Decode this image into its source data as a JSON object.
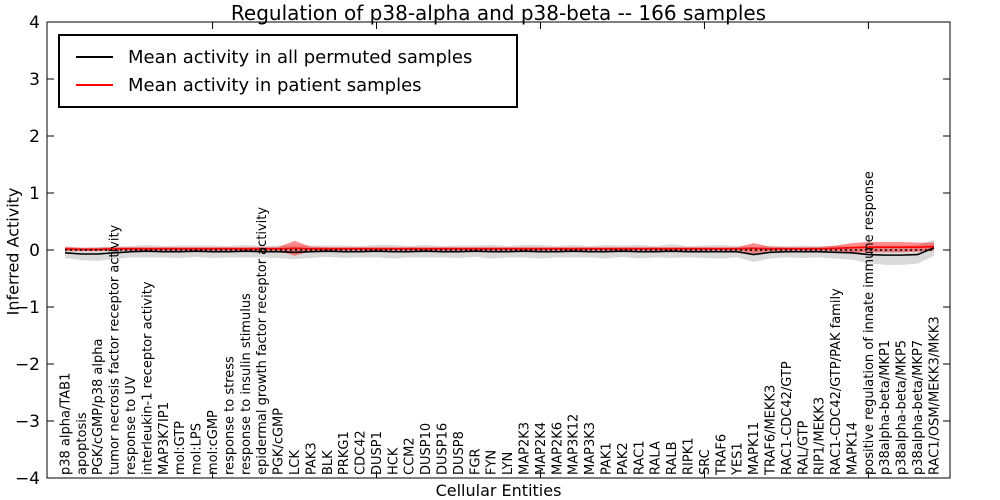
{
  "title": "Regulation of p38-alpha and p38-beta -- 166 samples",
  "legend": {
    "items": [
      {
        "label": "Mean activity in all permuted samples",
        "color": "#000000"
      },
      {
        "label": "Mean activity in patient samples",
        "color": "#ff0000"
      }
    ]
  },
  "colors": {
    "permuted_line": "#000000",
    "patient_line": "#ff0000",
    "permuted_band": "#d9d9d9",
    "patient_band": "#f08080",
    "zero_line": "#000000",
    "axis": "#000000",
    "background": "#ffffff"
  },
  "chart_data": {
    "type": "line",
    "title": "Regulation of p38-alpha and p38-beta -- 166 samples",
    "xlabel": "Cellular Entities",
    "ylabel": "Inferred Activity",
    "ylim": [
      -4,
      4
    ],
    "yticks": [
      4,
      3,
      2,
      1,
      0,
      -1,
      -2,
      -3,
      -4
    ],
    "ytick_labels": [
      "4",
      "3",
      "2",
      "1",
      "0",
      "−1",
      "−2",
      "−3",
      "−4"
    ],
    "grid": false,
    "legend_position": "upper left",
    "zero_reference_line": 0,
    "categories": [
      "p38 alpha/TAB1",
      "apoptosis",
      "PGK/cGMP/p38 alpha",
      "tumor necrosis factor receptor activity",
      "response to UV",
      "interleukin-1 receptor activity",
      "MAP3K7IP1",
      "mol:GTP",
      "mol:LPS",
      "mol:cGMP",
      "response to stress",
      "response to insulin stimulus",
      "epidermal growth factor receptor activity",
      "PGK/cGMP",
      "LCK",
      "PAK3",
      "BLK",
      "PRKG1",
      "CDC42",
      "DUSP1",
      "HCK",
      "CCM2",
      "DUSP10",
      "DUSP16",
      "DUSP8",
      "FGR",
      "FYN",
      "LYN",
      "MAP2K3",
      "MAP2K4",
      "MAP2K6",
      "MAP3K12",
      "MAP3K3",
      "PAK1",
      "PAK2",
      "RAC1",
      "RALA",
      "RALB",
      "RIPK1",
      "SRC",
      "TRAF6",
      "YES1",
      "MAPK11",
      "TRAF6/MEKK3",
      "RAC1-CDC42/GTP",
      "RAL/GTP",
      "RIP1/MEKK3",
      "RAC1-CDC42/GTP/PAK family",
      "MAPK14",
      "positive regulation of innate immune response",
      "p38alpha-beta/MKP1",
      "p38alpha-beta/MKP5",
      "p38alpha-beta/MKP7",
      "RAC1/OSM/MEKK3/MKK3"
    ],
    "series": [
      {
        "name": "Mean activity in all permuted samples",
        "color": "#000000",
        "values": [
          -0.05,
          -0.07,
          -0.07,
          -0.05,
          -0.03,
          -0.02,
          -0.03,
          -0.03,
          -0.02,
          -0.03,
          -0.03,
          -0.02,
          -0.03,
          -0.03,
          -0.04,
          -0.03,
          -0.02,
          -0.03,
          -0.03,
          -0.02,
          -0.03,
          -0.03,
          -0.02,
          -0.03,
          -0.03,
          -0.02,
          -0.03,
          -0.03,
          -0.02,
          -0.03,
          -0.03,
          -0.02,
          -0.03,
          -0.03,
          -0.02,
          -0.03,
          -0.03,
          -0.02,
          -0.03,
          -0.03,
          -0.03,
          -0.03,
          -0.08,
          -0.04,
          -0.03,
          -0.03,
          -0.03,
          -0.04,
          -0.05,
          -0.08,
          -0.09,
          -0.09,
          -0.08,
          0.04
        ]
      },
      {
        "name": "Mean activity in patient samples",
        "color": "#ff0000",
        "values": [
          0.02,
          0.01,
          0.01,
          0.02,
          0.02,
          0.02,
          0.02,
          0.02,
          0.02,
          0.02,
          0.02,
          0.02,
          0.02,
          0.02,
          0.03,
          0.02,
          0.02,
          0.02,
          0.02,
          0.02,
          0.02,
          0.02,
          0.02,
          0.02,
          0.02,
          0.02,
          0.02,
          0.02,
          0.02,
          0.02,
          0.02,
          0.02,
          0.02,
          0.02,
          0.02,
          0.02,
          0.02,
          0.02,
          0.02,
          0.02,
          0.02,
          0.02,
          0.03,
          0.02,
          0.02,
          0.02,
          0.02,
          0.03,
          0.04,
          0.05,
          0.05,
          0.05,
          0.05,
          0.06
        ]
      }
    ],
    "bands": [
      {
        "name": "permuted-confidence-band",
        "center_series": 0,
        "fill": "#000000",
        "fill_opacity": 0.15,
        "halfwidths": [
          0.09,
          0.11,
          0.12,
          0.11,
          0.1,
          0.11,
          0.1,
          0.11,
          0.1,
          0.11,
          0.1,
          0.11,
          0.1,
          0.11,
          0.12,
          0.11,
          0.1,
          0.11,
          0.1,
          0.11,
          0.12,
          0.1,
          0.11,
          0.1,
          0.11,
          0.1,
          0.12,
          0.1,
          0.11,
          0.12,
          0.1,
          0.11,
          0.1,
          0.12,
          0.1,
          0.12,
          0.1,
          0.12,
          0.1,
          0.11,
          0.12,
          0.1,
          0.13,
          0.11,
          0.1,
          0.11,
          0.1,
          0.11,
          0.12,
          0.15,
          0.17,
          0.17,
          0.16,
          0.14
        ]
      },
      {
        "name": "patient-confidence-band",
        "center_series": 1,
        "fill": "#ff0000",
        "fill_opacity": 0.45,
        "halfwidths": [
          0.04,
          0.03,
          0.03,
          0.03,
          0.03,
          0.03,
          0.03,
          0.03,
          0.03,
          0.03,
          0.03,
          0.03,
          0.03,
          0.03,
          0.13,
          0.04,
          0.03,
          0.03,
          0.03,
          0.03,
          0.03,
          0.03,
          0.03,
          0.03,
          0.03,
          0.03,
          0.03,
          0.03,
          0.03,
          0.03,
          0.03,
          0.03,
          0.03,
          0.03,
          0.03,
          0.03,
          0.03,
          0.03,
          0.03,
          0.03,
          0.03,
          0.03,
          0.09,
          0.04,
          0.03,
          0.03,
          0.03,
          0.05,
          0.08,
          0.09,
          0.09,
          0.09,
          0.08,
          0.07
        ]
      }
    ]
  }
}
